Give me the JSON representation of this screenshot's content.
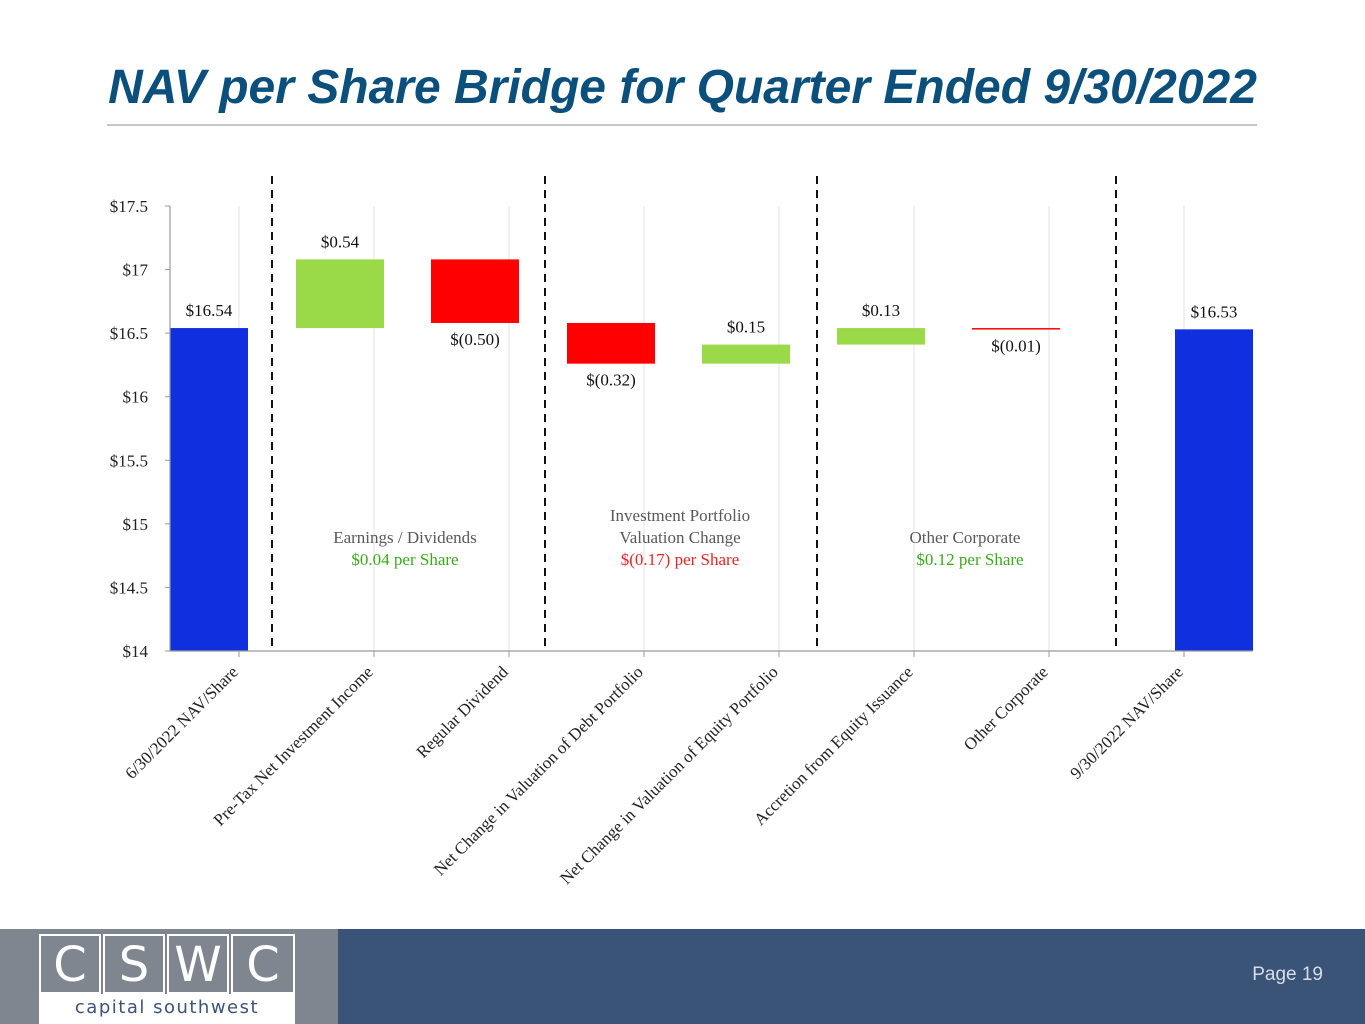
{
  "title": "NAV per Share Bridge for Quarter Ended 9/30/2022",
  "chart_data": {
    "type": "waterfall",
    "ylim": [
      14,
      17.5
    ],
    "yticks": [
      "$17.5",
      "$17",
      "$16.5",
      "$16",
      "$15.5",
      "$15",
      "$14.5",
      "$14"
    ],
    "ytick_values": [
      17.5,
      17,
      16.5,
      16,
      15.5,
      15,
      14.5,
      14
    ],
    "categories": [
      "6/30/2022 NAV/Share",
      "Pre-Tax Net Investment Income",
      "Regular Dividend",
      "Net Change in Valuation of Debt Portfolio",
      "Net Change in Valuation of Equity Portfolio",
      "Accretion from Equity Issuance",
      "Other Corporate",
      "9/30/2022 NAV/Share"
    ],
    "values": [
      16.54,
      0.54,
      -0.5,
      -0.32,
      0.15,
      0.13,
      -0.01,
      16.53
    ],
    "bar_kinds": [
      "total",
      "increase",
      "decrease",
      "decrease",
      "increase",
      "increase",
      "decrease",
      "total"
    ],
    "data_labels": [
      "$16.54",
      "$0.54",
      "$(0.50)",
      "$(0.32)",
      "$0.15",
      "$0.13",
      "$(0.01)",
      "$16.53"
    ],
    "colors": {
      "total": "#1030e0",
      "increase": "#9ad948",
      "decrease": "#ff0000",
      "positive_text": "#3aaa1a",
      "negative_text": "#ee2222",
      "group_text": "#595959"
    },
    "groups": [
      {
        "lines": [
          "Earnings / Dividends"
        ],
        "summary": "$0.04 per Share",
        "sign": "positive"
      },
      {
        "lines": [
          "Investment Portfolio",
          "Valuation Change"
        ],
        "summary": "$(0.17) per Share",
        "sign": "negative"
      },
      {
        "lines": [
          "Other Corporate"
        ],
        "summary": "$0.12 per Share",
        "sign": "positive"
      }
    ]
  },
  "footer": {
    "logo_letters": [
      "C",
      "S",
      "W",
      "C"
    ],
    "logo_tagline": "capital southwest",
    "page_label": "Page 19"
  }
}
